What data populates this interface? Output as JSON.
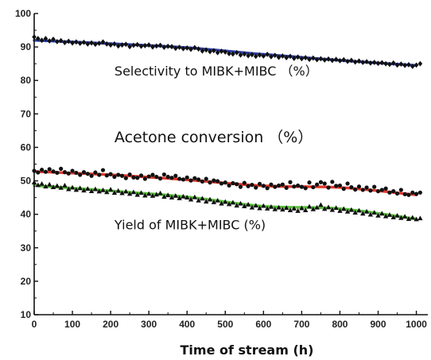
{
  "chart_data": {
    "type": "scatter",
    "title": "",
    "xlabel": "Time of stream (h)",
    "ylabel": "",
    "xlim": [
      0,
      1030
    ],
    "ylim": [
      10,
      100
    ],
    "xticks": [
      0,
      100,
      200,
      300,
      400,
      500,
      600,
      700,
      800,
      900,
      1000
    ],
    "yticks": [
      10,
      20,
      30,
      40,
      50,
      60,
      70,
      80,
      90,
      100
    ],
    "grid": false,
    "legend": "none",
    "annotations": [
      {
        "text": "Selectivity to MIBK+MIBC （%）",
        "x": 210,
        "y": 81.5,
        "size": "normal"
      },
      {
        "text": "Acetone conversion （%）",
        "x": 210,
        "y": 61.5,
        "size": "large"
      },
      {
        "text": "Yield of MIBK+MIBC (%)",
        "x": 210,
        "y": 35.5,
        "size": "normal"
      }
    ],
    "series": [
      {
        "marker": "diamond",
        "marker_color": "#111111",
        "fit_color": "#2e3fa8",
        "fit": {
          "x": [
            0,
            200,
            400,
            600,
            800,
            1000
          ],
          "y": [
            92.0,
            91.0,
            89.8,
            87.8,
            86.0,
            84.5
          ]
        },
        "x": [
          0,
          10,
          20,
          30,
          40,
          50,
          60,
          70,
          80,
          90,
          100,
          110,
          120,
          130,
          140,
          150,
          160,
          170,
          180,
          190,
          200,
          210,
          220,
          230,
          240,
          250,
          260,
          270,
          280,
          290,
          300,
          310,
          320,
          330,
          340,
          350,
          360,
          370,
          380,
          390,
          400,
          410,
          420,
          430,
          440,
          450,
          460,
          470,
          480,
          490,
          500,
          510,
          520,
          530,
          540,
          550,
          560,
          570,
          580,
          590,
          600,
          610,
          620,
          630,
          640,
          650,
          660,
          670,
          680,
          690,
          700,
          710,
          720,
          730,
          740,
          750,
          760,
          770,
          780,
          790,
          800,
          810,
          820,
          830,
          840,
          850,
          860,
          870,
          880,
          890,
          900,
          910,
          920,
          930,
          940,
          950,
          960,
          970,
          980,
          990,
          1000,
          1010
        ],
        "y": [
          93.0,
          92.5,
          92.0,
          92.5,
          91.8,
          92.3,
          91.6,
          91.9,
          91.3,
          91.7,
          91.2,
          91.5,
          91.1,
          91.4,
          90.9,
          91.2,
          90.8,
          91.1,
          91.5,
          90.9,
          90.6,
          90.9,
          90.3,
          90.6,
          90.8,
          90.1,
          90.5,
          90.7,
          90.2,
          90.4,
          90.6,
          90.0,
          90.3,
          90.5,
          89.9,
          90.2,
          90.1,
          89.6,
          89.9,
          89.5,
          89.7,
          89.3,
          89.8,
          89.4,
          88.8,
          89.1,
          88.6,
          88.9,
          88.3,
          88.7,
          88.5,
          88.0,
          87.9,
          88.3,
          87.6,
          87.9,
          87.4,
          87.7,
          87.2,
          87.6,
          87.3,
          87.8,
          87.1,
          87.5,
          86.9,
          87.3,
          86.8,
          87.2,
          86.6,
          87.0,
          86.5,
          86.8,
          86.3,
          86.7,
          86.2,
          86.5,
          86.1,
          86.4,
          86.0,
          86.3,
          85.9,
          86.2,
          85.7,
          86.0,
          85.5,
          85.8,
          85.4,
          85.6,
          85.2,
          85.4,
          85.1,
          85.3,
          85.0,
          84.8,
          85.2,
          84.6,
          84.9,
          84.5,
          84.7,
          84.2,
          84.6,
          85.0
        ]
      },
      {
        "marker": "circle",
        "marker_color": "#111111",
        "fit_color": "#e0392e",
        "fit": {
          "x": [
            0,
            200,
            400,
            600,
            800,
            1000
          ],
          "y": [
            52.8,
            51.8,
            50.3,
            48.5,
            48.0,
            45.8
          ]
        },
        "x": [
          0,
          10,
          20,
          30,
          40,
          50,
          60,
          70,
          80,
          90,
          100,
          110,
          120,
          130,
          140,
          150,
          160,
          170,
          180,
          190,
          200,
          210,
          220,
          230,
          240,
          250,
          260,
          270,
          280,
          290,
          300,
          310,
          320,
          330,
          340,
          350,
          360,
          370,
          380,
          390,
          400,
          410,
          420,
          430,
          440,
          450,
          460,
          470,
          480,
          490,
          500,
          510,
          520,
          530,
          540,
          550,
          560,
          570,
          580,
          590,
          600,
          610,
          620,
          630,
          640,
          650,
          660,
          670,
          680,
          690,
          700,
          710,
          720,
          730,
          740,
          750,
          760,
          770,
          780,
          790,
          800,
          810,
          820,
          830,
          840,
          850,
          860,
          870,
          880,
          890,
          900,
          910,
          920,
          930,
          940,
          950,
          960,
          970,
          980,
          990,
          1000,
          1010
        ],
        "y": [
          53.0,
          52.5,
          53.3,
          52.7,
          53.5,
          52.8,
          52.4,
          53.6,
          52.6,
          52.2,
          53.0,
          52.4,
          51.8,
          52.6,
          52.1,
          51.5,
          52.5,
          51.8,
          53.2,
          51.6,
          52.0,
          51.2,
          51.8,
          51.5,
          50.8,
          51.9,
          51.0,
          50.9,
          51.6,
          50.6,
          51.3,
          51.8,
          51.2,
          50.7,
          51.9,
          51.2,
          50.9,
          51.5,
          50.6,
          50.4,
          51.0,
          50.1,
          50.8,
          50.4,
          49.8,
          50.6,
          49.5,
          50.1,
          49.9,
          49.2,
          49.5,
          48.6,
          49.3,
          49.0,
          48.2,
          49.4,
          48.4,
          48.8,
          48.0,
          49.1,
          48.5,
          47.8,
          48.9,
          48.2,
          48.6,
          48.9,
          47.9,
          49.6,
          48.3,
          48.6,
          48.2,
          47.8,
          49.5,
          48.1,
          48.9,
          49.6,
          49.2,
          48.0,
          49.7,
          48.5,
          48.6,
          47.6,
          49.2,
          48.1,
          47.4,
          48.3,
          47.3,
          48.0,
          47.1,
          48.2,
          46.9,
          47.3,
          47.7,
          46.5,
          46.9,
          46.2,
          47.3,
          46.0,
          45.8,
          46.5,
          46.1,
          46.5
        ]
      },
      {
        "marker": "triangle",
        "marker_color": "#111111",
        "fit_color": "#5cbf3e",
        "fit": {
          "x": [
            0,
            200,
            400,
            600,
            800,
            1000
          ],
          "y": [
            48.6,
            47.0,
            45.2,
            42.4,
            41.7,
            38.6
          ]
        },
        "x": [
          0,
          10,
          20,
          30,
          40,
          50,
          60,
          70,
          80,
          90,
          100,
          110,
          120,
          130,
          140,
          150,
          160,
          170,
          180,
          190,
          200,
          210,
          220,
          230,
          240,
          250,
          260,
          270,
          280,
          290,
          300,
          310,
          320,
          330,
          340,
          350,
          360,
          370,
          380,
          390,
          400,
          410,
          420,
          430,
          440,
          450,
          460,
          470,
          480,
          490,
          500,
          510,
          520,
          530,
          540,
          550,
          560,
          570,
          580,
          590,
          600,
          610,
          620,
          630,
          640,
          650,
          660,
          670,
          680,
          690,
          700,
          710,
          720,
          730,
          740,
          750,
          760,
          770,
          780,
          790,
          800,
          810,
          820,
          830,
          840,
          850,
          860,
          870,
          880,
          890,
          900,
          910,
          920,
          930,
          940,
          950,
          960,
          970,
          980,
          990,
          1000,
          1010
        ],
        "y": [
          49.5,
          48.7,
          49.1,
          48.3,
          48.9,
          48.1,
          48.5,
          47.9,
          48.6,
          47.5,
          48.0,
          47.3,
          47.8,
          47.1,
          47.6,
          46.9,
          47.5,
          46.8,
          47.2,
          46.6,
          47.4,
          46.4,
          47.0,
          46.3,
          46.8,
          46.1,
          46.6,
          45.8,
          46.4,
          45.6,
          46.1,
          45.5,
          45.9,
          46.3,
          45.2,
          45.7,
          45.0,
          45.5,
          44.8,
          45.3,
          45.0,
          44.4,
          45.1,
          44.1,
          44.7,
          43.8,
          44.4,
          43.6,
          44.1,
          43.2,
          43.7,
          43.0,
          43.5,
          42.6,
          43.2,
          42.4,
          42.9,
          42.0,
          42.6,
          41.8,
          42.5,
          41.7,
          42.2,
          41.5,
          42.0,
          41.4,
          41.9,
          41.2,
          41.7,
          41.0,
          41.8,
          41.2,
          42.3,
          41.5,
          42.0,
          42.8,
          41.6,
          42.1,
          41.3,
          41.9,
          41.0,
          41.6,
          40.8,
          41.3,
          40.5,
          41.1,
          40.2,
          40.8,
          39.9,
          40.5,
          39.6,
          40.2,
          39.4,
          39.8,
          39.1,
          39.6,
          38.9,
          39.3,
          38.6,
          39.0,
          38.5,
          38.8
        ]
      }
    ]
  }
}
